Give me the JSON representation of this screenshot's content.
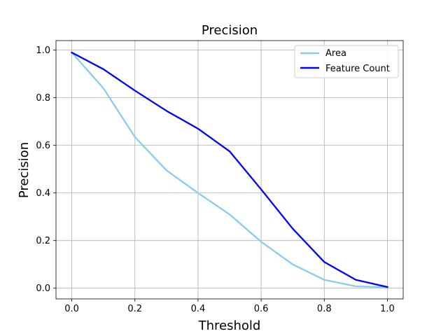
{
  "chart_data": {
    "type": "line",
    "title": "Precision",
    "xlabel": "Threshold",
    "ylabel": "Precision",
    "xlim": [
      -0.05,
      1.05
    ],
    "ylim": [
      -0.045,
      1.04
    ],
    "x_ticks": [
      "0.0",
      "0.2",
      "0.4",
      "0.6",
      "0.8",
      "1.0"
    ],
    "y_ticks": [
      "0.0",
      "0.2",
      "0.4",
      "0.6",
      "0.8",
      "1.0"
    ],
    "grid": true,
    "legend_position": "top-right",
    "x": [
      0.0,
      0.1,
      0.2,
      0.3,
      0.4,
      0.5,
      0.6,
      0.7,
      0.8,
      0.9,
      1.0
    ],
    "series": [
      {
        "name": "Area",
        "color": "#87ceeb",
        "values": [
          0.99,
          0.84,
          0.635,
          0.495,
          0.4,
          0.31,
          0.195,
          0.1,
          0.035,
          0.008,
          0.004
        ]
      },
      {
        "name": "Feature Count",
        "color": "#0000ff",
        "values": [
          0.99,
          0.92,
          0.83,
          0.745,
          0.67,
          0.575,
          0.415,
          0.25,
          0.11,
          0.035,
          0.005
        ]
      }
    ]
  }
}
